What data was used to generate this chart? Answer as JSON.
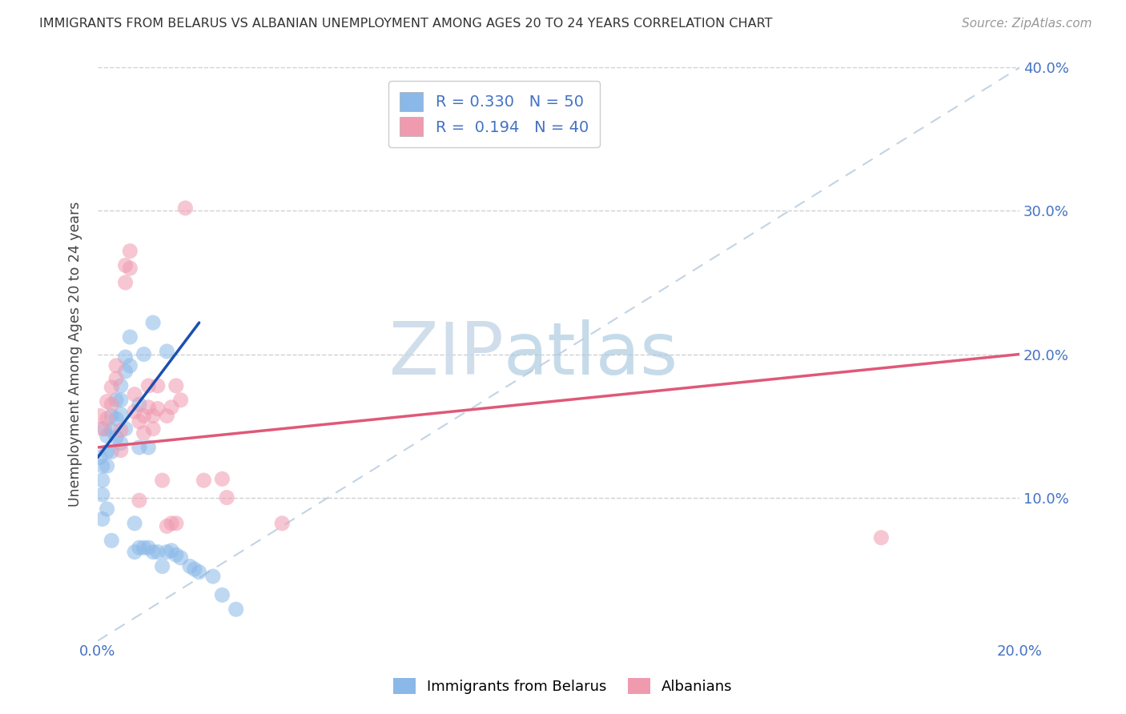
{
  "title": "IMMIGRANTS FROM BELARUS VS ALBANIAN UNEMPLOYMENT AMONG AGES 20 TO 24 YEARS CORRELATION CHART",
  "source": "Source: ZipAtlas.com",
  "ylabel": "Unemployment Among Ages 20 to 24 years",
  "xlim": [
    0.0,
    0.2
  ],
  "ylim": [
    0.0,
    0.4
  ],
  "belarus_color": "#8ab8e8",
  "albanian_color": "#f09ab0",
  "belarus_line_color": "#1a50b0",
  "albanian_line_color": "#e05878",
  "diagonal_color": "#b8cce0",
  "grid_color": "#d0d0d0",
  "watermark_color": "#ccdded",
  "tick_color": "#4472c4",
  "title_color": "#333333",
  "source_color": "#999999",
  "belarus_R": 0.33,
  "albanian_R": 0.194,
  "belarus_N": 50,
  "albanian_N": 40,
  "belarus_x": [
    0.0005,
    0.001,
    0.001,
    0.001,
    0.001,
    0.0015,
    0.002,
    0.002,
    0.002,
    0.002,
    0.003,
    0.003,
    0.003,
    0.003,
    0.004,
    0.004,
    0.004,
    0.005,
    0.005,
    0.005,
    0.005,
    0.006,
    0.006,
    0.006,
    0.007,
    0.007,
    0.008,
    0.008,
    0.009,
    0.009,
    0.009,
    0.01,
    0.01,
    0.011,
    0.011,
    0.012,
    0.012,
    0.013,
    0.014,
    0.015,
    0.015,
    0.016,
    0.017,
    0.018,
    0.02,
    0.021,
    0.022,
    0.025,
    0.027,
    0.03
  ],
  "belarus_y": [
    0.128,
    0.122,
    0.112,
    0.102,
    0.085,
    0.148,
    0.143,
    0.132,
    0.122,
    0.092,
    0.157,
    0.147,
    0.132,
    0.07,
    0.168,
    0.155,
    0.142,
    0.178,
    0.168,
    0.158,
    0.138,
    0.198,
    0.188,
    0.148,
    0.212,
    0.192,
    0.082,
    0.062,
    0.165,
    0.135,
    0.065,
    0.2,
    0.065,
    0.135,
    0.065,
    0.222,
    0.062,
    0.062,
    0.052,
    0.202,
    0.062,
    0.063,
    0.06,
    0.058,
    0.052,
    0.05,
    0.048,
    0.045,
    0.032,
    0.022
  ],
  "albanian_x": [
    0.0005,
    0.001,
    0.002,
    0.002,
    0.003,
    0.003,
    0.004,
    0.004,
    0.005,
    0.005,
    0.006,
    0.006,
    0.007,
    0.007,
    0.008,
    0.008,
    0.009,
    0.009,
    0.01,
    0.01,
    0.011,
    0.011,
    0.012,
    0.012,
    0.013,
    0.013,
    0.014,
    0.015,
    0.015,
    0.016,
    0.016,
    0.017,
    0.017,
    0.018,
    0.019,
    0.023,
    0.027,
    0.028,
    0.04,
    0.17
  ],
  "albanian_y": [
    0.157,
    0.148,
    0.167,
    0.155,
    0.177,
    0.165,
    0.192,
    0.183,
    0.147,
    0.133,
    0.262,
    0.25,
    0.272,
    0.26,
    0.172,
    0.16,
    0.153,
    0.098,
    0.157,
    0.145,
    0.178,
    0.163,
    0.157,
    0.148,
    0.178,
    0.162,
    0.112,
    0.157,
    0.08,
    0.163,
    0.082,
    0.178,
    0.082,
    0.168,
    0.302,
    0.112,
    0.113,
    0.1,
    0.082,
    0.072
  ]
}
